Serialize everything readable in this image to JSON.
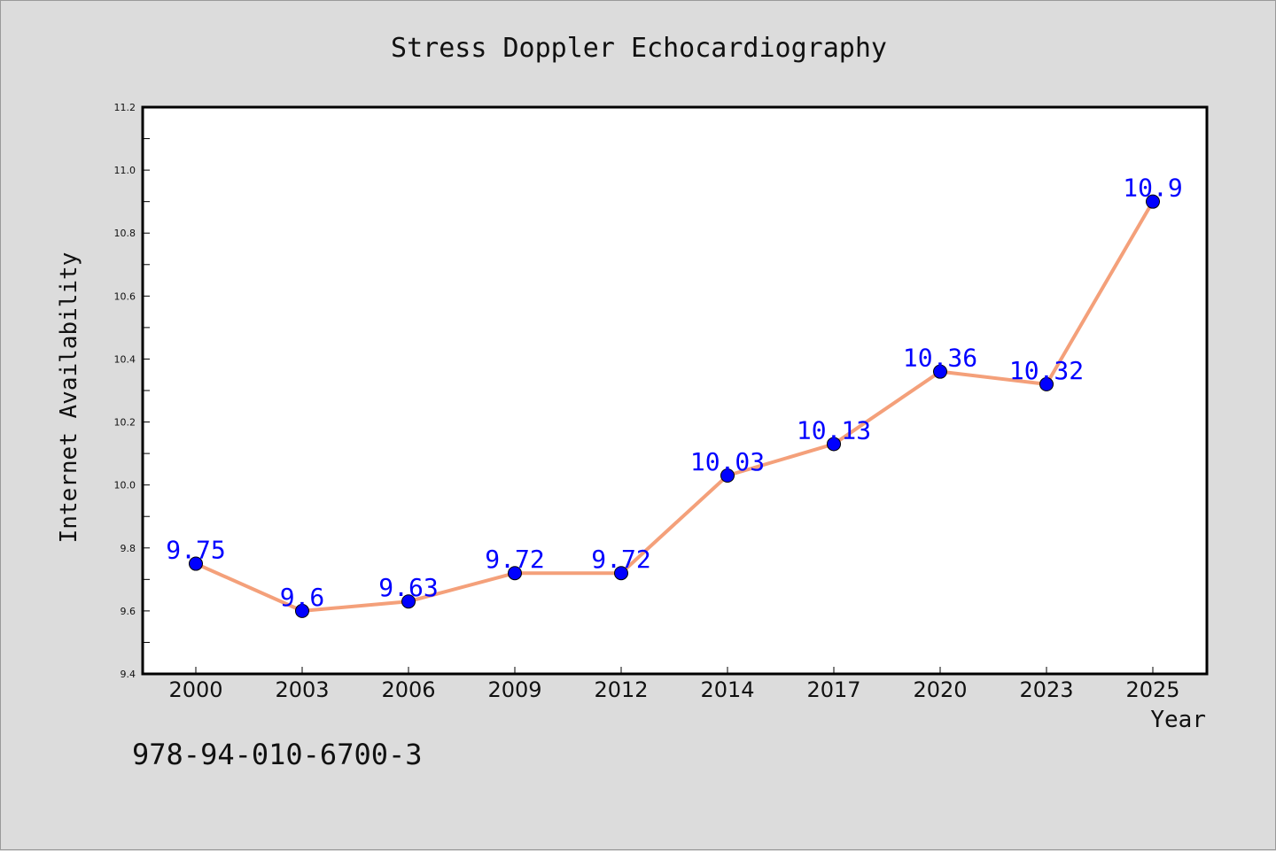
{
  "chart_data": {
    "type": "line",
    "title": "Stress Doppler Echocardiography",
    "xlabel": "Year",
    "ylabel": "Internet Availability",
    "categories": [
      "2000",
      "2003",
      "2006",
      "2009",
      "2012",
      "2014",
      "2017",
      "2020",
      "2023",
      "2025"
    ],
    "series": [
      {
        "values": [
          9.75,
          9.6,
          9.63,
          9.72,
          9.72,
          10.03,
          10.13,
          10.36,
          10.32,
          10.9
        ],
        "labels": [
          "9.75",
          "9.6",
          "9.63",
          "9.72",
          "9.72",
          "10.03",
          "10.13",
          "10.36",
          "10.32",
          "10.9"
        ]
      }
    ],
    "ylim": [
      9.4,
      11.2
    ],
    "yticks": [
      "9.4",
      "9.6",
      "9.8",
      "10.0",
      "10.2",
      "10.4",
      "10.6",
      "10.8",
      "11.0",
      "11.2"
    ],
    "grid": false,
    "line_color": "#f4a07a",
    "marker_color": "#0000ff",
    "label_color": "#0000ff"
  },
  "footer": {
    "isbn": "978-94-010-6700-3"
  }
}
